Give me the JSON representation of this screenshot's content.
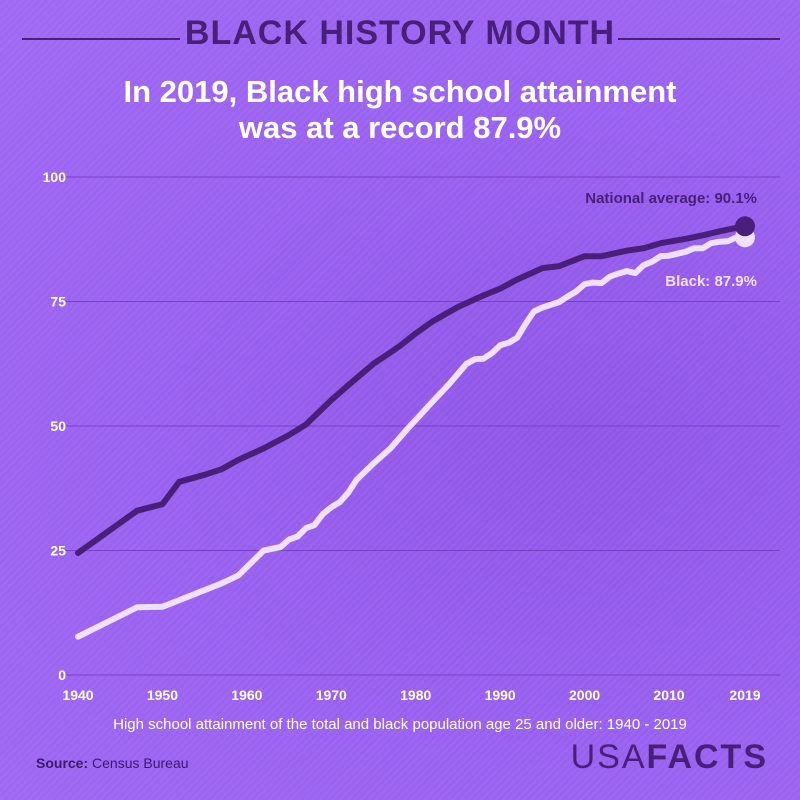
{
  "header": {
    "title": "BLACK HISTORY MONTH"
  },
  "headline": {
    "line1": "In 2019, Black high school attainment",
    "line2": "was at a record 87.9%"
  },
  "footer": {
    "caption": "High school attainment of the total and black population age 25 and older: 1940 - 2019",
    "source_label": "Source:",
    "source_value": "Census Bureau",
    "logo_part1": "USA",
    "logo_part2": "FACTS"
  },
  "colors": {
    "background": "#9a62f0",
    "national": "#4a1f7a",
    "black": "#f0e0ff",
    "grid": "#7a3fc8"
  },
  "chart_data": {
    "type": "line",
    "xlim": [
      1940,
      2019
    ],
    "ylim": [
      0,
      100
    ],
    "x_ticks": [
      1940,
      1950,
      1960,
      1970,
      1980,
      1990,
      2000,
      2010,
      2019
    ],
    "y_ticks": [
      0,
      25,
      50,
      75,
      100
    ],
    "grid": "horizontal",
    "series": [
      {
        "name": "National average",
        "label": "National average: 90.1%",
        "color": "#4a1f7a",
        "points": [
          [
            1940,
            24.5
          ],
          [
            1947,
            33
          ],
          [
            1950,
            34.3
          ],
          [
            1952,
            38.8
          ],
          [
            1955,
            40.2
          ],
          [
            1957,
            41.3
          ],
          [
            1959,
            43.2
          ],
          [
            1962,
            45.5
          ],
          [
            1965,
            48.2
          ],
          [
            1967,
            50.3
          ],
          [
            1970,
            55.2
          ],
          [
            1972,
            58.2
          ],
          [
            1975,
            62.5
          ],
          [
            1978,
            65.9
          ],
          [
            1980,
            68.6
          ],
          [
            1982,
            71.0
          ],
          [
            1985,
            73.9
          ],
          [
            1988,
            76.2
          ],
          [
            1990,
            77.6
          ],
          [
            1992,
            79.4
          ],
          [
            1995,
            81.7
          ],
          [
            1997,
            82.1
          ],
          [
            2000,
            84.1
          ],
          [
            2002,
            84.1
          ],
          [
            2005,
            85.2
          ],
          [
            2007,
            85.7
          ],
          [
            2009,
            86.7
          ],
          [
            2012,
            87.6
          ],
          [
            2014,
            88.3
          ],
          [
            2016,
            89.1
          ],
          [
            2018,
            89.8
          ],
          [
            2019,
            90.1
          ]
        ]
      },
      {
        "name": "Black",
        "label": "Black: 87.9%",
        "color": "#f0e0ff",
        "points": [
          [
            1940,
            7.7
          ],
          [
            1947,
            13.6
          ],
          [
            1950,
            13.7
          ],
          [
            1957,
            18.4
          ],
          [
            1959,
            20.0
          ],
          [
            1962,
            25.0
          ],
          [
            1964,
            25.7
          ],
          [
            1965,
            27.2
          ],
          [
            1966,
            27.8
          ],
          [
            1967,
            29.5
          ],
          [
            1968,
            30.1
          ],
          [
            1969,
            32.3
          ],
          [
            1970,
            33.7
          ],
          [
            1971,
            34.7
          ],
          [
            1972,
            36.6
          ],
          [
            1973,
            39.2
          ],
          [
            1975,
            42.5
          ],
          [
            1977,
            45.5
          ],
          [
            1979,
            49.4
          ],
          [
            1980,
            51.2
          ],
          [
            1982,
            54.9
          ],
          [
            1984,
            58.5
          ],
          [
            1986,
            62.5
          ],
          [
            1987,
            63.4
          ],
          [
            1988,
            63.5
          ],
          [
            1989,
            64.6
          ],
          [
            1990,
            66.2
          ],
          [
            1991,
            66.7
          ],
          [
            1992,
            67.7
          ],
          [
            1993,
            70.5
          ],
          [
            1994,
            73.0
          ],
          [
            1995,
            73.8
          ],
          [
            1997,
            74.9
          ],
          [
            1998,
            76.0
          ],
          [
            1999,
            77.0
          ],
          [
            2000,
            78.5
          ],
          [
            2001,
            78.8
          ],
          [
            2002,
            78.7
          ],
          [
            2003,
            80.0
          ],
          [
            2004,
            80.6
          ],
          [
            2005,
            81.1
          ],
          [
            2006,
            80.7
          ],
          [
            2007,
            82.3
          ],
          [
            2008,
            83.0
          ],
          [
            2009,
            84.1
          ],
          [
            2010,
            84.2
          ],
          [
            2011,
            84.6
          ],
          [
            2012,
            85.0
          ],
          [
            2013,
            85.7
          ],
          [
            2014,
            85.7
          ],
          [
            2015,
            86.7
          ],
          [
            2016,
            87.0
          ],
          [
            2017,
            87.1
          ],
          [
            2018,
            87.9
          ],
          [
            2019,
            87.9
          ]
        ]
      }
    ]
  }
}
